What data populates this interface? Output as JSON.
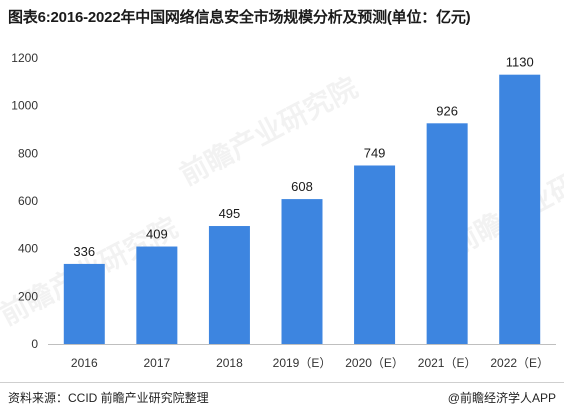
{
  "title": "图表6:2016-2022年中国网络信息安全市场规模分析及预测(单位：亿元)",
  "source": "资料来源：CCID 前瞻产业研究院整理",
  "brand": "@前瞻经济学人APP",
  "watermark_text": "前瞻产业研究院",
  "colors": {
    "bar": "#3d85e0",
    "axis_text": "#333333",
    "grid": "#e6e6e6"
  },
  "chart_data": {
    "type": "bar",
    "categories": [
      "2016",
      "2017",
      "2018",
      "2019（E）",
      "2020（E）",
      "2021（E）",
      "2022（E）"
    ],
    "values": [
      336,
      409,
      495,
      608,
      749,
      926,
      1130
    ],
    "title": "图表6:2016-2022年中国网络信息安全市场规模分析及预测(单位：亿元)",
    "xlabel": "",
    "ylabel": "",
    "ylim": [
      0,
      1200
    ],
    "yticks": [
      0,
      200,
      400,
      600,
      800,
      1000,
      1200
    ],
    "grid": false,
    "legend": "none"
  }
}
